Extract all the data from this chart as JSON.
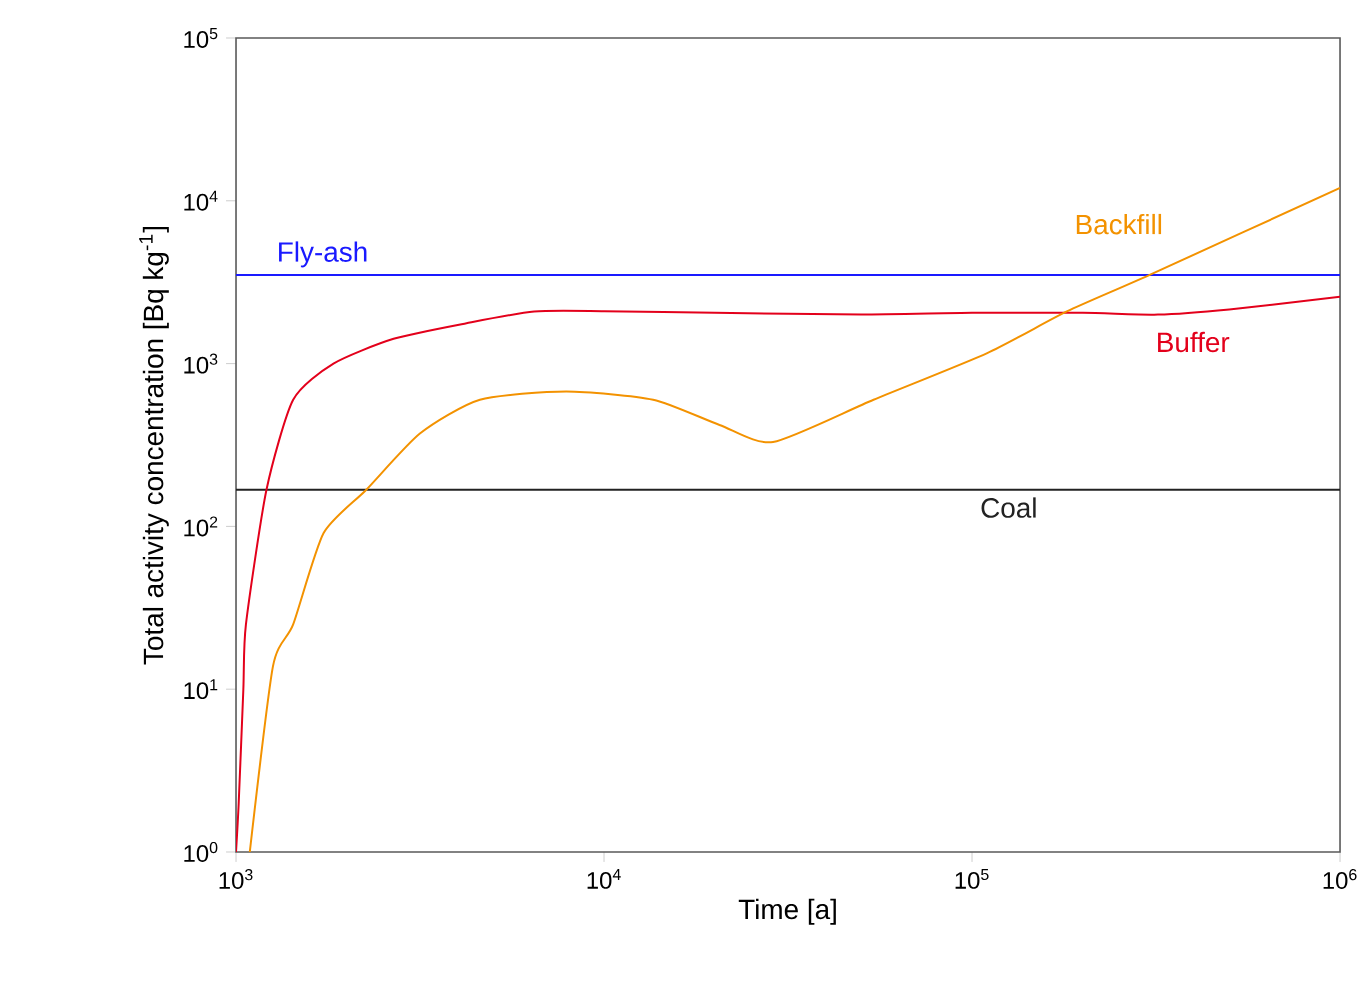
{
  "chart_data": {
    "type": "line",
    "xlabel": "Time [a]",
    "ylabel": "Total activity concentration [Bq kg$^{-1}$]",
    "log": "xy",
    "xlim": [
      1000,
      1000000
    ],
    "ylim": [
      1,
      100000
    ],
    "xticks": [
      {
        "value": 1000,
        "label": "10$^{3}$"
      },
      {
        "value": 10000,
        "label": "10$^{4}$"
      },
      {
        "value": 100000,
        "label": "10$^{5}$"
      },
      {
        "value": 1000000,
        "label": "10$^{6}$"
      }
    ],
    "yticks": [
      {
        "value": 1,
        "label": "10$^{0}$"
      },
      {
        "value": 10,
        "label": "10$^{1}$"
      },
      {
        "value": 100,
        "label": "10$^{2}$"
      },
      {
        "value": 1000,
        "label": "10$^{3}$"
      },
      {
        "value": 10000,
        "label": "10$^{4}$"
      },
      {
        "value": 100000,
        "label": "10$^{5}$"
      }
    ],
    "grid": false,
    "marker": "none",
    "line_style": "solid",
    "series": [
      {
        "name": "Buffer",
        "color": "#e3001b",
        "x": [
          1000,
          1017,
          1047,
          1064,
          1210,
          1430,
          1840,
          2680,
          4230,
          6460,
          10000,
          20000,
          50000,
          100000,
          200000,
          320000,
          500000,
          1000000
        ],
        "values": [
          1,
          2,
          10,
          25,
          168,
          600,
          1000,
          1420,
          1770,
          2090,
          2100,
          2050,
          2000,
          2050,
          2050,
          2000,
          2150,
          2570
        ]
      },
      {
        "name": "Backfill",
        "color": "#f39200",
        "x": [
          1090,
          1260,
          1430,
          1730,
          2260,
          3160,
          4600,
          7900,
          13600,
          20600,
          28800,
          54000,
          110000,
          181000,
          305000,
          1000000
        ],
        "values": [
          1,
          13.8,
          25,
          91,
          168,
          372,
          600,
          675,
          600,
          420,
          330,
          600,
          1160,
          2090,
          3520,
          12000
        ]
      }
    ],
    "ref_lines": [
      {
        "axis": "y",
        "value": 3500,
        "label": "Fly-ash",
        "color": "#1a1aff"
      },
      {
        "axis": "y",
        "value": 168,
        "label": "Coal",
        "color": "#222222"
      }
    ]
  }
}
